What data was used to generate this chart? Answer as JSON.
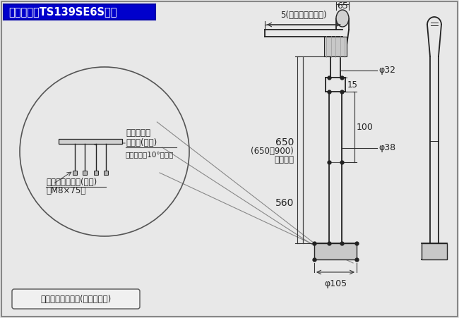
{
  "title": "エンド支柱TS139SE6S寸法",
  "title_bg": "#0000cc",
  "title_fg": "#ffffff",
  "bg_color": "#e8e8e8",
  "line_color": "#222222",
  "material_text": "材質：ステンレス(鏡面仕上げ)",
  "label_5": "5(手すりの差込代)",
  "label_65": "65",
  "label_15": "15",
  "label_650a": "650",
  "label_650b": "(650～900)",
  "label_650c": "調整可能",
  "label_100": "100",
  "label_560": "560",
  "label_phi32": "φ32",
  "label_phi38": "φ38",
  "label_phi105": "φ105",
  "circle_label_line1": "傾斜調整用",
  "circle_label_line2": "ボルト(同梱)",
  "circle_label_line3": "＜対応角度10°以内＞",
  "circle_label_line4": "アンカーボルト(同梱)",
  "circle_label_line5": "＜M8×75＞",
  "border_color": "#888888"
}
